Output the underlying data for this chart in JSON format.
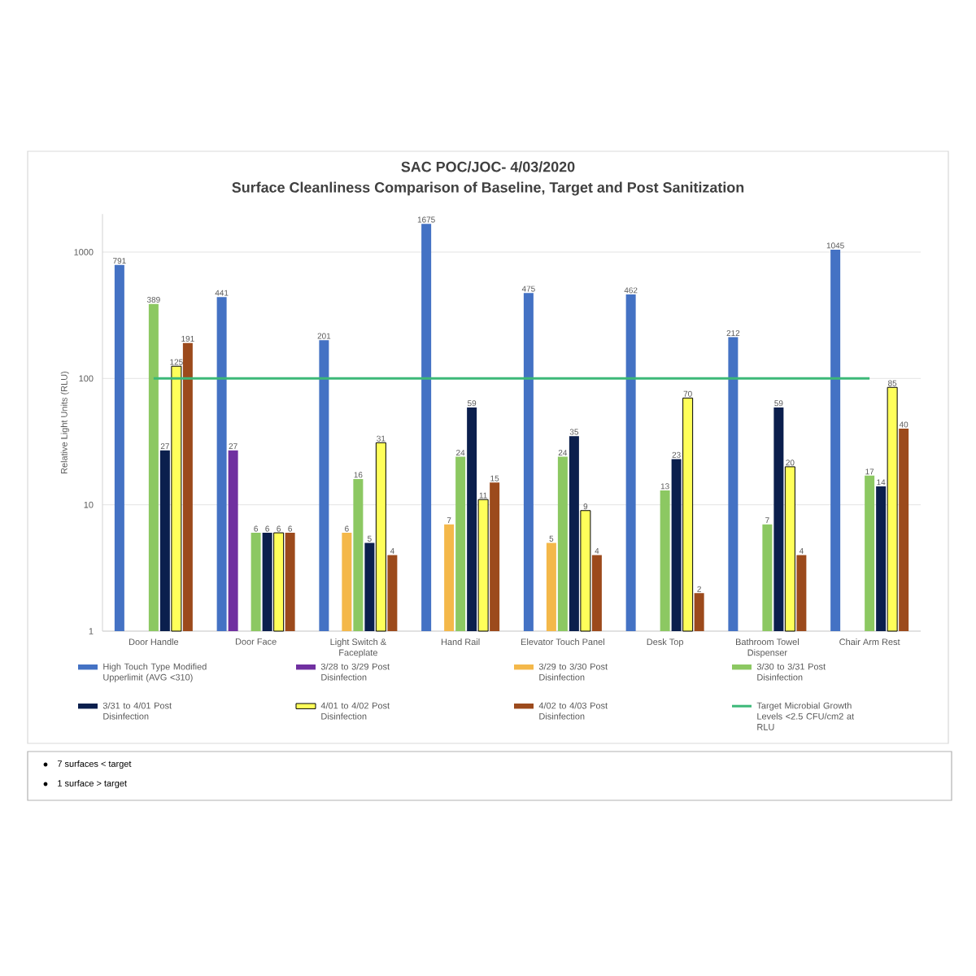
{
  "chart_data": {
    "type": "bar",
    "title": "SAC POC/JOC- 4/03/2020",
    "subtitle": "Surface Cleanliness Comparison of Baseline, Target and Post Sanitization",
    "ylabel": "Relative Light Units (RLU)",
    "categories": [
      "Door Handle",
      "Door Face",
      "Light Switch & Faceplate",
      "Hand Rail",
      "Elevator Touch Panel",
      "Desk Top",
      "Bathroom Towel Dispenser",
      "Chair Arm Rest"
    ],
    "series": [
      {
        "name": "High Touch Type Modified Upperlimit (AVG <310)",
        "color": "#4472c4",
        "values": [
          791,
          441,
          201,
          1675,
          475,
          462,
          212,
          1045
        ]
      },
      {
        "name": "3/28 to 3/29 Post Disinfection",
        "color": "#7030a0",
        "values": [
          null,
          27,
          null,
          null,
          null,
          null,
          null,
          null
        ]
      },
      {
        "name": "3/29 to 3/30 Post Disinfection",
        "color": "#f4b84a",
        "values": [
          null,
          null,
          6,
          7,
          5,
          null,
          null,
          null
        ]
      },
      {
        "name": "3/30 to 3/31 Post Disinfection",
        "color": "#8cc862",
        "values": [
          389,
          6,
          16,
          24,
          24,
          13,
          7,
          17
        ]
      },
      {
        "name": "3/31 to 4/01 Post Disinfection",
        "color": "#0b1f4d",
        "values": [
          27,
          6,
          5,
          59,
          35,
          23,
          59,
          14
        ]
      },
      {
        "name": "4/01 to 4/02 Post Disinfection",
        "color": "#ffff5a",
        "values": [
          125,
          6,
          31,
          11,
          9,
          70,
          20,
          85
        ]
      },
      {
        "name": "4/02 to 4/03 Post Disinfection",
        "color": "#9c4a1c",
        "values": [
          191,
          6,
          4,
          15,
          4,
          2,
          4,
          40
        ]
      }
    ],
    "log": "y",
    "ylim": [
      1,
      2000
    ],
    "yticks": [
      1,
      10,
      100,
      1000
    ],
    "grid": "y",
    "legend": "bottom",
    "data_labels": true,
    "ref_lines": [
      {
        "axis": "y",
        "value": 100,
        "label": "Target Microbial Growth Levels <2.5 CFU/cm2 at RLU",
        "color": "#3cb878"
      }
    ],
    "annotations": [
      "7 surfaces < target",
      "1 surface > target"
    ]
  }
}
